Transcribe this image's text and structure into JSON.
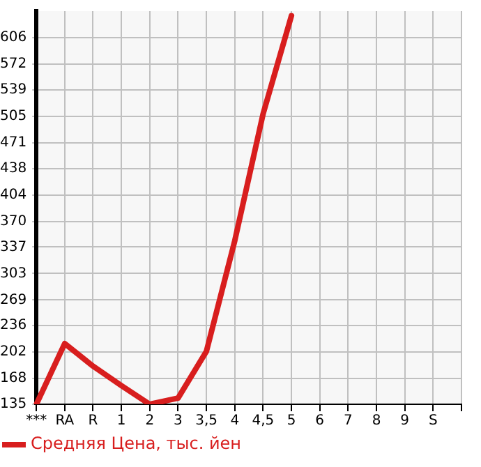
{
  "chart_data": {
    "type": "line",
    "categories": [
      "***",
      "RA",
      "R",
      "1",
      "2",
      "3",
      "3,5",
      "4",
      "4,5",
      "5",
      "6",
      "7",
      "8",
      "9",
      "S",
      null
    ],
    "series": [
      {
        "name": "Средняя Цена, тыс. йен",
        "color": "#d81e1e",
        "values": [
          135,
          213,
          184,
          159,
          135,
          143,
          203,
          345,
          508,
          634,
          null,
          null,
          null,
          null,
          null,
          null
        ]
      }
    ],
    "ylim": [
      135,
      640
    ],
    "yticks": [
      135,
      168,
      202,
      236,
      269,
      303,
      337,
      370,
      404,
      438,
      471,
      505,
      539,
      572,
      606
    ],
    "grid": true,
    "legend": "bottom left",
    "marker": "none",
    "line_style": "solid"
  }
}
